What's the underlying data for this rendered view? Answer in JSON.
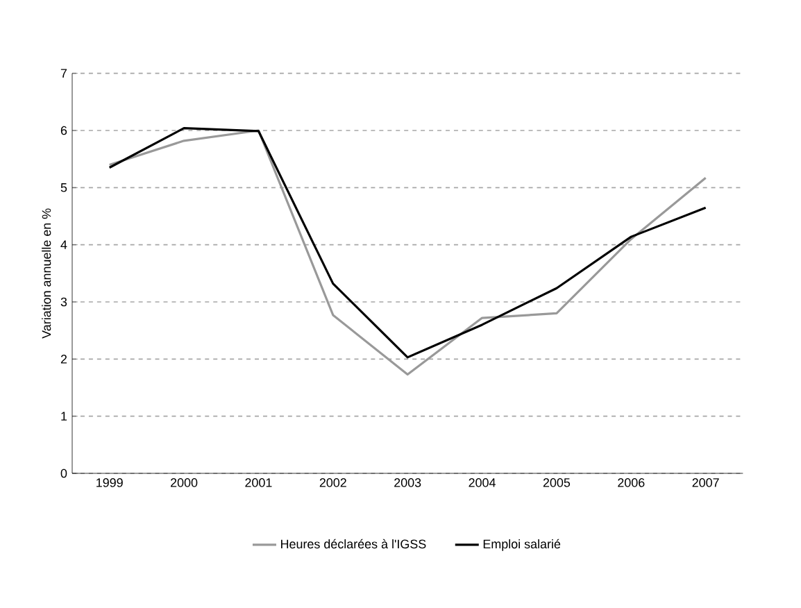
{
  "chart_data": {
    "type": "line",
    "ylabel": "Variation annuelle en %",
    "categories": [
      "1999",
      "2000",
      "2001",
      "2002",
      "2003",
      "2004",
      "2005",
      "2006",
      "2007"
    ],
    "series": [
      {
        "name": "Heures déclarées à l'IGSS",
        "color": "#999999",
        "values": [
          5.4,
          5.82,
          6.0,
          2.77,
          1.73,
          2.72,
          2.8,
          4.1,
          5.17
        ]
      },
      {
        "name": "Emploi salarié",
        "color": "#000000",
        "values": [
          5.35,
          6.04,
          5.99,
          3.32,
          2.03,
          2.6,
          3.24,
          4.14,
          4.65
        ]
      }
    ],
    "ylim": [
      0,
      7
    ],
    "yticks": [
      0,
      1,
      2,
      3,
      4,
      5,
      6,
      7
    ],
    "grid": "y",
    "legend": "bottom",
    "marker": "none",
    "line_style": "solid"
  }
}
